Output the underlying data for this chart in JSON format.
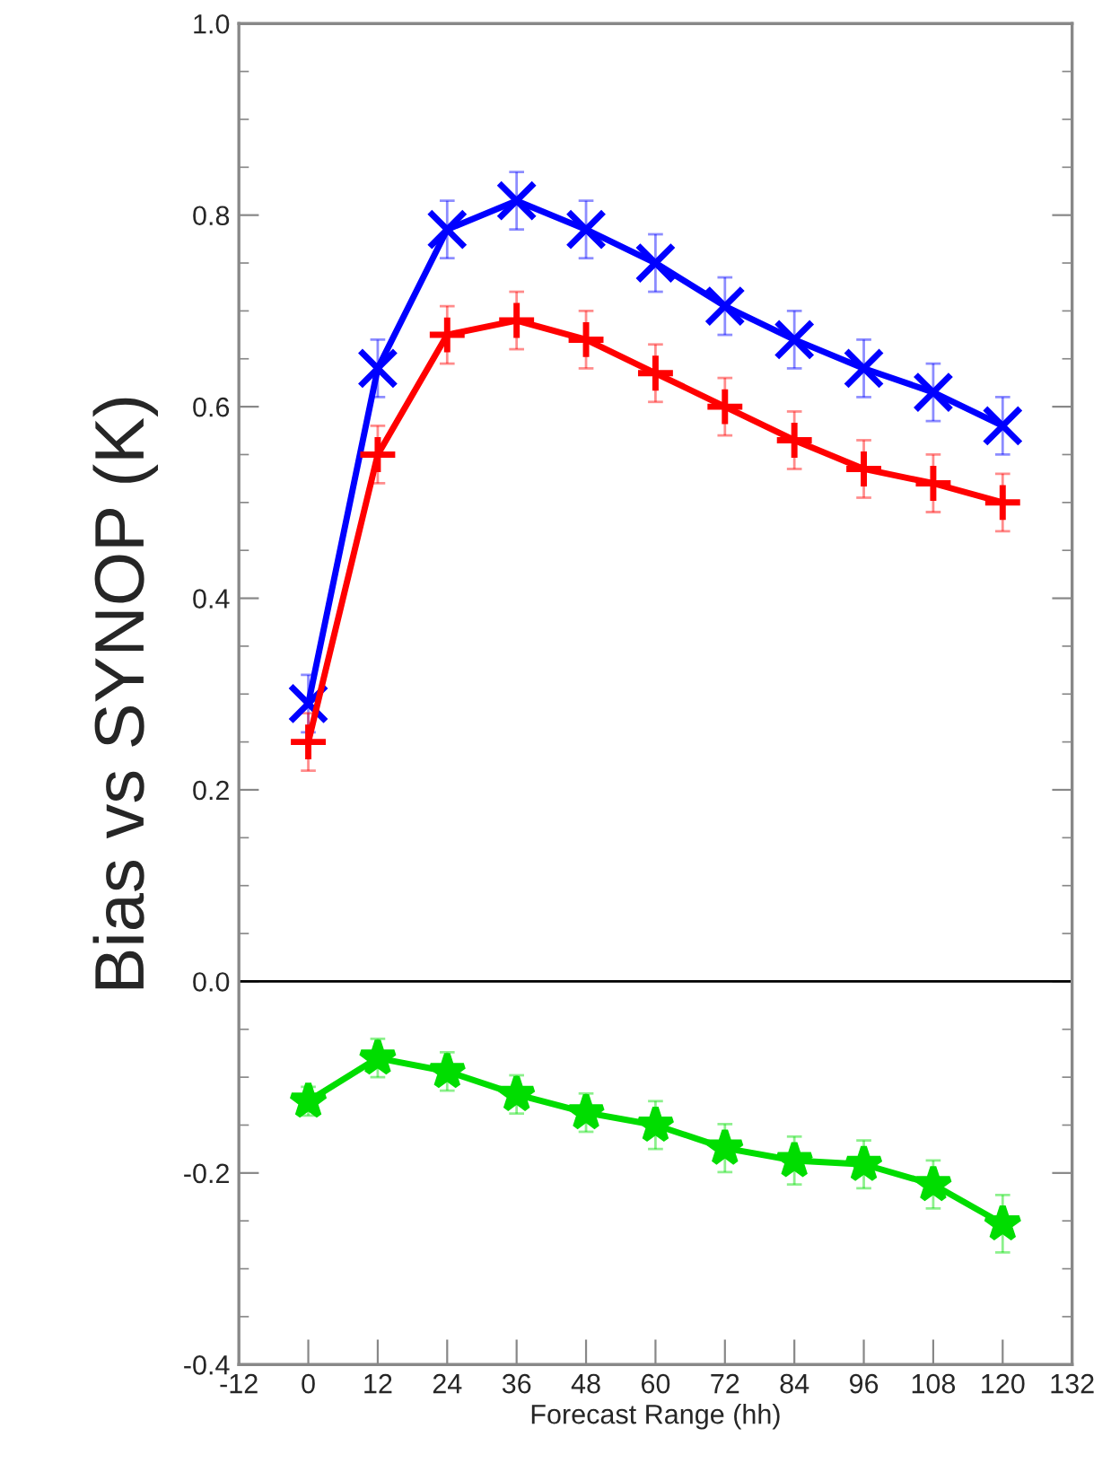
{
  "chart_data": {
    "type": "line",
    "xlabel": "Forecast Range (hh)",
    "ylabel": "Bias vs SYNOP (K)",
    "x": [
      0,
      12,
      24,
      36,
      48,
      60,
      72,
      84,
      96,
      108,
      120
    ],
    "series": [
      {
        "color": "#0000ff",
        "marker": "cross",
        "values": [
          0.29,
          0.64,
          0.785,
          0.815,
          0.785,
          0.75,
          0.705,
          0.67,
          0.64,
          0.615,
          0.58
        ],
        "errors": [
          0.03,
          0.03,
          0.03,
          0.03,
          0.03,
          0.03,
          0.03,
          0.03,
          0.03,
          0.03,
          0.03
        ]
      },
      {
        "color": "#ff0000",
        "marker": "plus",
        "values": [
          0.25,
          0.55,
          0.675,
          0.69,
          0.67,
          0.635,
          0.6,
          0.565,
          0.535,
          0.52,
          0.5
        ],
        "errors": [
          0.03,
          0.03,
          0.03,
          0.03,
          0.03,
          0.03,
          0.03,
          0.03,
          0.03,
          0.03,
          0.03
        ]
      },
      {
        "color": "#00dd00",
        "marker": "star",
        "values": [
          -0.125,
          -0.08,
          -0.094,
          -0.118,
          -0.137,
          -0.15,
          -0.174,
          -0.187,
          -0.191,
          -0.212,
          -0.253
        ],
        "errors": [
          0.015,
          0.02,
          0.02,
          0.02,
          0.02,
          0.025,
          0.025,
          0.025,
          0.025,
          0.025,
          0.03
        ]
      }
    ],
    "xlim": [
      -12,
      132
    ],
    "xticks": [
      -12,
      0,
      12,
      24,
      36,
      48,
      60,
      72,
      84,
      96,
      108,
      120,
      132
    ],
    "ylim": [
      -0.4,
      1.0
    ],
    "yticks": [
      {
        "value": -0.4,
        "label": "-0.4"
      },
      {
        "value": -0.2,
        "label": "-0.2"
      },
      {
        "value": 0.0,
        "label": "0.0"
      },
      0.2,
      0.4,
      0.6,
      0.8,
      {
        "value": 1.0,
        "label": "1.0"
      }
    ],
    "ref_lines": [
      {
        "axis": "y",
        "value": 0.0,
        "color": "#000000"
      }
    ],
    "grid": false,
    "legend": false
  }
}
